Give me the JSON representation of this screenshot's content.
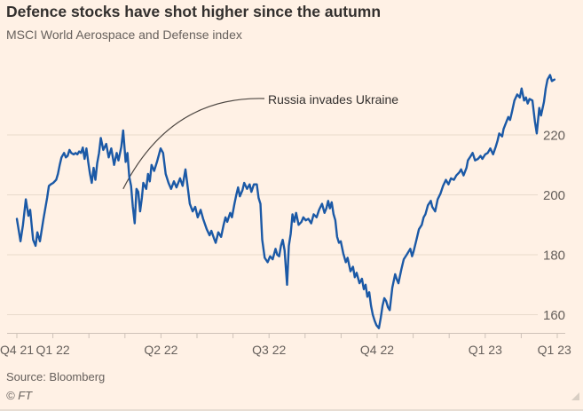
{
  "header": {
    "title": "Defence stocks have shot higher since the autumn",
    "subtitle": "MSCI World Aerospace and Defense index"
  },
  "footer": {
    "source": "Source: Bloomberg",
    "copyright": "© FT"
  },
  "colors": {
    "background": "#FFF1E5",
    "line": "#1B59A6",
    "grid": "#E8DACC",
    "axis": "#CEC2B8",
    "title": "#33302E",
    "muted": "#66605C",
    "annotation_line": "#4D4742"
  },
  "chart_data": {
    "type": "line",
    "title": "Defence stocks have shot higher since the autumn",
    "subtitle": "MSCI World Aerospace and Defense index",
    "xlabel": "",
    "ylabel": "",
    "x_unit": "months since Dec 2021",
    "grid": "horizontal",
    "legend": "none",
    "ylim": [
      152,
      242
    ],
    "y_ticks": [
      160,
      180,
      200,
      220
    ],
    "x_ticks_minor": [
      0,
      1,
      2,
      3,
      4,
      5,
      6,
      7,
      8,
      9,
      10,
      11,
      12,
      13,
      14,
      15
    ],
    "x_tick_labels": [
      {
        "m": 0,
        "label": "Q4 21"
      },
      {
        "m": 1,
        "label": "Q1 22"
      },
      {
        "m": 4,
        "label": "Q2 22"
      },
      {
        "m": 7,
        "label": "Q3 22"
      },
      {
        "m": 10,
        "label": "Q4 22"
      },
      {
        "m": 13,
        "label": "Q1 23"
      },
      {
        "m": 14.92,
        "label": "Q1 23"
      }
    ],
    "annotations": [
      {
        "text": "Russia invades Ukraine",
        "target": {
          "m": 2.95,
          "v": 202
        }
      }
    ],
    "series": [
      {
        "name": "MSCI World Aerospace and Defense index",
        "points": [
          [
            0,
            192
          ],
          [
            0.1,
            184.5
          ],
          [
            0.17,
            190
          ],
          [
            0.25,
            198.5
          ],
          [
            0.32,
            193
          ],
          [
            0.37,
            195
          ],
          [
            0.45,
            185
          ],
          [
            0.52,
            183
          ],
          [
            0.57,
            187.5
          ],
          [
            0.64,
            184.5
          ],
          [
            0.74,
            192
          ],
          [
            0.84,
            199
          ],
          [
            0.89,
            203
          ],
          [
            0.94,
            203.5
          ],
          [
            1.01,
            204
          ],
          [
            1.09,
            205
          ],
          [
            1.14,
            207
          ],
          [
            1.19,
            210
          ],
          [
            1.24,
            212.5
          ],
          [
            1.31,
            214
          ],
          [
            1.36,
            212.5
          ],
          [
            1.41,
            213
          ],
          [
            1.46,
            215
          ],
          [
            1.51,
            214
          ],
          [
            1.58,
            213.5
          ],
          [
            1.63,
            214
          ],
          [
            1.68,
            213.5
          ],
          [
            1.73,
            214.5
          ],
          [
            1.78,
            214
          ],
          [
            1.83,
            215.8
          ],
          [
            1.88,
            212
          ],
          [
            1.93,
            215.5
          ],
          [
            1.98,
            211
          ],
          [
            2.03,
            207
          ],
          [
            2.08,
            204
          ],
          [
            2.13,
            209
          ],
          [
            2.18,
            205
          ],
          [
            2.23,
            210.5
          ],
          [
            2.28,
            214
          ],
          [
            2.33,
            219
          ],
          [
            2.4,
            215
          ],
          [
            2.48,
            217
          ],
          [
            2.55,
            212.5
          ],
          [
            2.62,
            215.5
          ],
          [
            2.7,
            210
          ],
          [
            2.77,
            214
          ],
          [
            2.82,
            211.5
          ],
          [
            2.9,
            216
          ],
          [
            2.95,
            221.5
          ],
          [
            3.02,
            211
          ],
          [
            3.07,
            214
          ],
          [
            3.12,
            206
          ],
          [
            3.17,
            203
          ],
          [
            3.22,
            196
          ],
          [
            3.27,
            190.5
          ],
          [
            3.32,
            202
          ],
          [
            3.37,
            201
          ],
          [
            3.42,
            194.5
          ],
          [
            3.47,
            199
          ],
          [
            3.51,
            204
          ],
          [
            3.59,
            202
          ],
          [
            3.64,
            207
          ],
          [
            3.69,
            204.5
          ],
          [
            3.74,
            210
          ],
          [
            3.81,
            208
          ],
          [
            3.89,
            211
          ],
          [
            3.99,
            215.5
          ],
          [
            4.06,
            214
          ],
          [
            4.13,
            207
          ],
          [
            4.21,
            204
          ],
          [
            4.28,
            202
          ],
          [
            4.36,
            204.5
          ],
          [
            4.43,
            202.5
          ],
          [
            4.53,
            205.5
          ],
          [
            4.6,
            203
          ],
          [
            4.68,
            208.5
          ],
          [
            4.75,
            202
          ],
          [
            4.8,
            197
          ],
          [
            4.88,
            194.5
          ],
          [
            4.95,
            196
          ],
          [
            5.02,
            192.5
          ],
          [
            5.1,
            195
          ],
          [
            5.17,
            192
          ],
          [
            5.27,
            188.5
          ],
          [
            5.35,
            186.5
          ],
          [
            5.4,
            188
          ],
          [
            5.47,
            185.5
          ],
          [
            5.52,
            184
          ],
          [
            5.59,
            187.5
          ],
          [
            5.67,
            186
          ],
          [
            5.74,
            190
          ],
          [
            5.79,
            192.5
          ],
          [
            5.84,
            191
          ],
          [
            5.92,
            194
          ],
          [
            5.97,
            192.5
          ],
          [
            6.04,
            197
          ],
          [
            6.09,
            200
          ],
          [
            6.14,
            202.5
          ],
          [
            6.19,
            199.5
          ],
          [
            6.26,
            201.5
          ],
          [
            6.31,
            204
          ],
          [
            6.39,
            202
          ],
          [
            6.46,
            203.5
          ],
          [
            6.51,
            201
          ],
          [
            6.58,
            203.5
          ],
          [
            6.66,
            203.5
          ],
          [
            6.71,
            199
          ],
          [
            6.76,
            197
          ],
          [
            6.81,
            185
          ],
          [
            6.88,
            179
          ],
          [
            6.96,
            177.5
          ],
          [
            7.03,
            179.5
          ],
          [
            7.1,
            178.5
          ],
          [
            7.18,
            182
          ],
          [
            7.23,
            180
          ],
          [
            7.28,
            179.5
          ],
          [
            7.33,
            183
          ],
          [
            7.38,
            185
          ],
          [
            7.43,
            181.5
          ],
          [
            7.5,
            170
          ],
          [
            7.55,
            183
          ],
          [
            7.6,
            187
          ],
          [
            7.65,
            193.5
          ],
          [
            7.7,
            191
          ],
          [
            7.75,
            194
          ],
          [
            7.82,
            190
          ],
          [
            7.9,
            191
          ],
          [
            7.95,
            192.5
          ],
          [
            8.02,
            191.5
          ],
          [
            8.09,
            192
          ],
          [
            8.17,
            190.5
          ],
          [
            8.24,
            193.5
          ],
          [
            8.32,
            192.5
          ],
          [
            8.39,
            195
          ],
          [
            8.47,
            197
          ],
          [
            8.54,
            194
          ],
          [
            8.59,
            195.5
          ],
          [
            8.64,
            198
          ],
          [
            8.69,
            195.5
          ],
          [
            8.74,
            197.5
          ],
          [
            8.79,
            193.5
          ],
          [
            8.84,
            191.5
          ],
          [
            8.89,
            186
          ],
          [
            8.94,
            184
          ],
          [
            8.99,
            184.5
          ],
          [
            9.06,
            180.5
          ],
          [
            9.13,
            177.5
          ],
          [
            9.18,
            179
          ],
          [
            9.26,
            174.5
          ],
          [
            9.33,
            176
          ],
          [
            9.38,
            172.5
          ],
          [
            9.43,
            174
          ],
          [
            9.51,
            170.5
          ],
          [
            9.58,
            172
          ],
          [
            9.63,
            168.5
          ],
          [
            9.68,
            170
          ],
          [
            9.73,
            166
          ],
          [
            9.78,
            167.5
          ],
          [
            9.83,
            163
          ],
          [
            9.88,
            160
          ],
          [
            9.93,
            158
          ],
          [
            9.98,
            156.5
          ],
          [
            10.05,
            155.5
          ],
          [
            10.1,
            159
          ],
          [
            10.15,
            163
          ],
          [
            10.2,
            165.5
          ],
          [
            10.25,
            164.5
          ],
          [
            10.3,
            162.5
          ],
          [
            10.35,
            161.5
          ],
          [
            10.42,
            169
          ],
          [
            10.5,
            173.5
          ],
          [
            10.54,
            172
          ],
          [
            10.59,
            170.5
          ],
          [
            10.67,
            175
          ],
          [
            10.74,
            178.5
          ],
          [
            10.82,
            180
          ],
          [
            10.92,
            182
          ],
          [
            10.97,
            179.5
          ],
          [
            11.01,
            181
          ],
          [
            11.09,
            185
          ],
          [
            11.16,
            188.5
          ],
          [
            11.24,
            190
          ],
          [
            11.29,
            192.5
          ],
          [
            11.34,
            193.5
          ],
          [
            11.41,
            196.5
          ],
          [
            11.49,
            198
          ],
          [
            11.53,
            196
          ],
          [
            11.61,
            194.5
          ],
          [
            11.68,
            198.5
          ],
          [
            11.76,
            200.5
          ],
          [
            11.83,
            203
          ],
          [
            11.91,
            205
          ],
          [
            11.98,
            203.5
          ],
          [
            12.05,
            205.5
          ],
          [
            12.13,
            205
          ],
          [
            12.2,
            206.5
          ],
          [
            12.28,
            207.5
          ],
          [
            12.33,
            208.5
          ],
          [
            12.4,
            206.5
          ],
          [
            12.48,
            209
          ],
          [
            12.52,
            211.5
          ],
          [
            12.6,
            213
          ],
          [
            12.65,
            214
          ],
          [
            12.72,
            211.5
          ],
          [
            12.8,
            212
          ],
          [
            12.87,
            213
          ],
          [
            12.92,
            212
          ],
          [
            13,
            213.5
          ],
          [
            13.07,
            214
          ],
          [
            13.14,
            215.5
          ],
          [
            13.22,
            213.5
          ],
          [
            13.29,
            216
          ],
          [
            13.34,
            218
          ],
          [
            13.39,
            220.5
          ],
          [
            13.47,
            219.5
          ],
          [
            13.51,
            222
          ],
          [
            13.56,
            223.5
          ],
          [
            13.64,
            226
          ],
          [
            13.69,
            225
          ],
          [
            13.74,
            227.5
          ],
          [
            13.81,
            231.5
          ],
          [
            13.89,
            233.5
          ],
          [
            13.96,
            232.5
          ],
          [
            14.01,
            235.5
          ],
          [
            14.08,
            231.5
          ],
          [
            14.13,
            232.5
          ],
          [
            14.18,
            230.5
          ],
          [
            14.23,
            232
          ],
          [
            14.31,
            231.5
          ],
          [
            14.38,
            224.5
          ],
          [
            14.43,
            220.5
          ],
          [
            14.5,
            229
          ],
          [
            14.55,
            226.5
          ],
          [
            14.63,
            231
          ],
          [
            14.68,
            235.5
          ],
          [
            14.73,
            238.5
          ],
          [
            14.8,
            240
          ],
          [
            14.85,
            238
          ],
          [
            14.92,
            238.5
          ]
        ]
      }
    ]
  }
}
